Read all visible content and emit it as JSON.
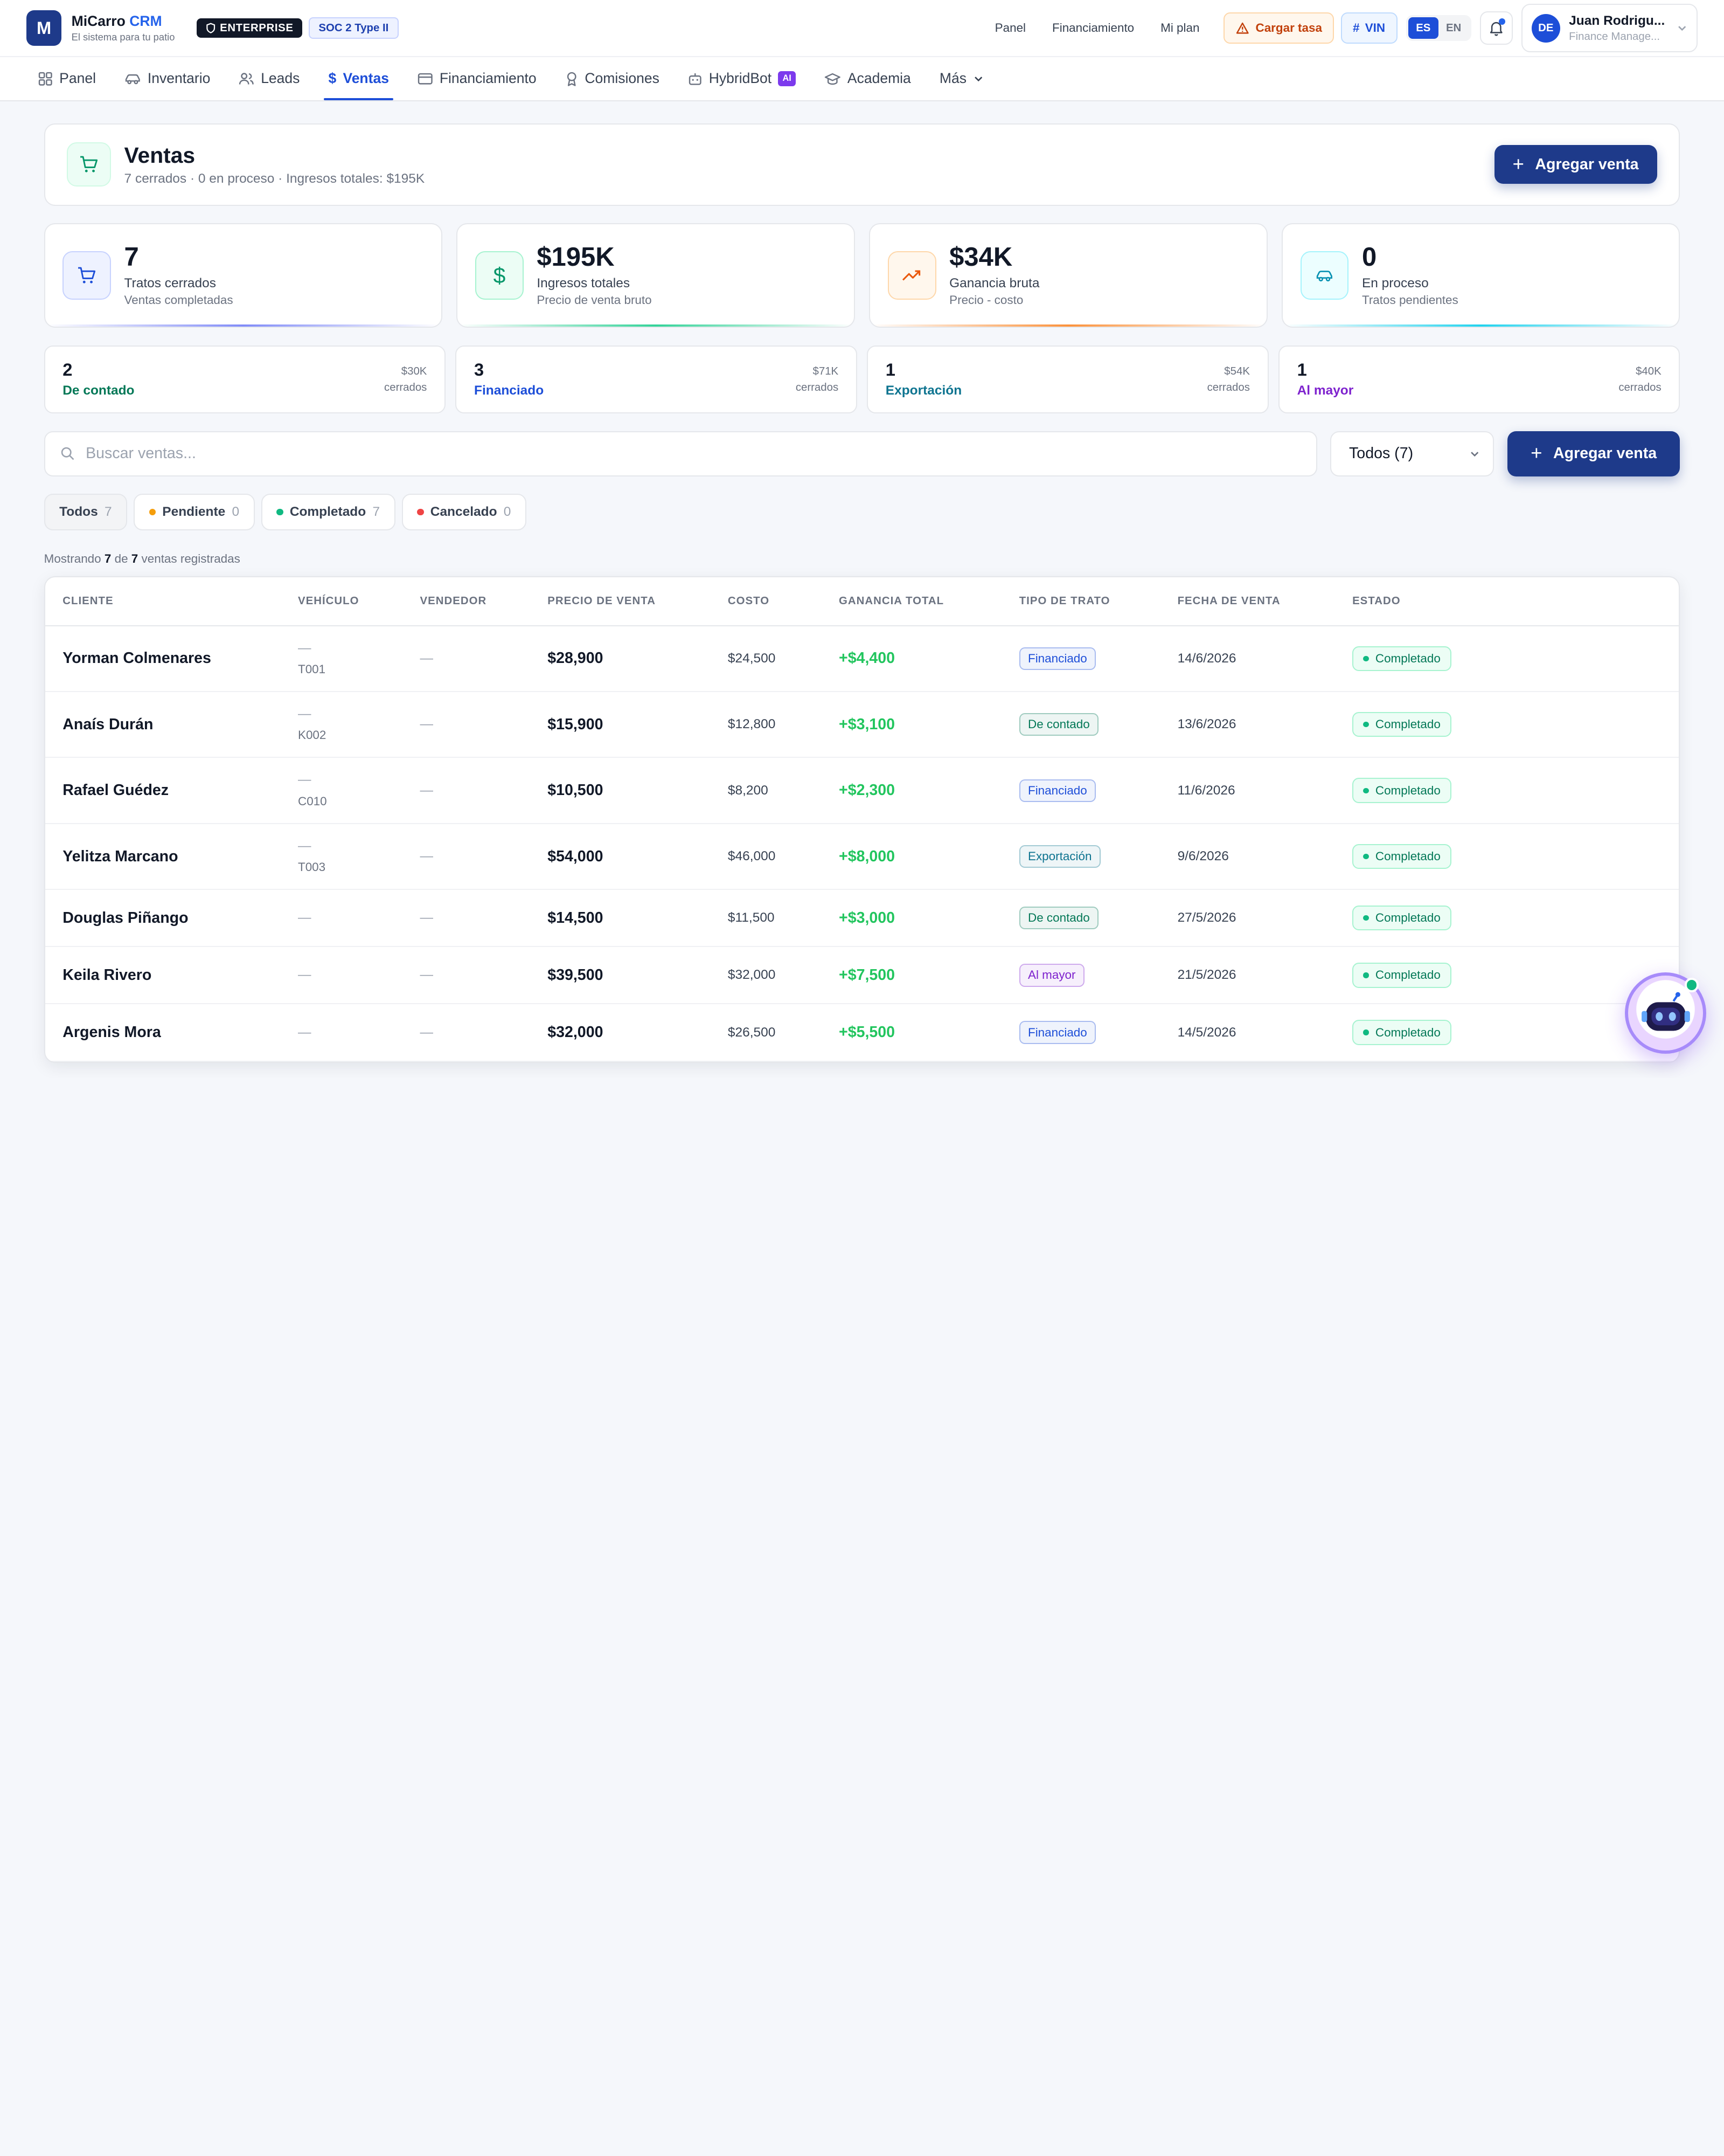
{
  "app": {
    "logo_letter": "M",
    "name": "MiCarro",
    "name_suffix": "CRM",
    "tagline": "El sistema para tu patio",
    "badge_enterprise": "ENTERPRISE",
    "badge_soc": "SOC 2 Type II"
  },
  "top_links": [
    "Panel",
    "Financiamiento",
    "Mi plan"
  ],
  "actions": {
    "cargar_tasa": "Cargar tasa",
    "vin": "VIN",
    "lang_es": "ES",
    "lang_en": "EN",
    "lang_active": "ES"
  },
  "user": {
    "initials": "DE",
    "name": "Juan Rodrigu...",
    "role": "Finance Manage..."
  },
  "nav": [
    {
      "label": "Panel",
      "icon": "grid-icon"
    },
    {
      "label": "Inventario",
      "icon": "car-icon"
    },
    {
      "label": "Leads",
      "icon": "users-icon"
    },
    {
      "label": "Ventas",
      "icon": "dollar-icon",
      "active": true
    },
    {
      "label": "Financiamiento",
      "icon": "credit-card-icon"
    },
    {
      "label": "Comisiones",
      "icon": "award-icon"
    },
    {
      "label": "HybridBot",
      "icon": "bot-icon",
      "badge": "AI"
    },
    {
      "label": "Academia",
      "icon": "graduation-cap-icon"
    },
    {
      "label": "Más",
      "icon": "chevron-down-icon"
    }
  ],
  "header": {
    "title": "Ventas",
    "subtitle": "7 cerrados · 0 en proceso · Ingresos totales: $195K",
    "add_button": "Agregar venta"
  },
  "stats": [
    {
      "value": "7",
      "label": "Tratos cerrados",
      "sub": "Ventas completadas",
      "icon": "cart-icon",
      "color": "#1d4ed8"
    },
    {
      "value": "$195K",
      "label": "Ingresos totales",
      "sub": "Precio de venta bruto",
      "icon": "dollar-icon",
      "color": "#059669"
    },
    {
      "value": "$34K",
      "label": "Ganancia bruta",
      "sub": "Precio - costo",
      "icon": "trending-up-icon",
      "color": "#ea580c"
    },
    {
      "value": "0",
      "label": "En proceso",
      "sub": "Tratos pendientes",
      "icon": "car-icon",
      "color": "#0891b2"
    }
  ],
  "deal_types": [
    {
      "count": "2",
      "label": "De contado",
      "amount": "$30K",
      "amount_sub": "cerrados",
      "color": "#047857"
    },
    {
      "count": "3",
      "label": "Financiado",
      "amount": "$71K",
      "amount_sub": "cerrados",
      "color": "#1d4ed8"
    },
    {
      "count": "1",
      "label": "Exportación",
      "amount": "$54K",
      "amount_sub": "cerrados",
      "color": "#0e7490"
    },
    {
      "count": "1",
      "label": "Al mayor",
      "amount": "$40K",
      "amount_sub": "cerrados",
      "color": "#7e22ce"
    }
  ],
  "search": {
    "placeholder": "Buscar ventas...",
    "filter_value": "Todos (7)",
    "add_button": "Agregar venta"
  },
  "filters": [
    {
      "label": "Todos",
      "count": "7",
      "active": true
    },
    {
      "label": "Pendiente",
      "count": "0",
      "dot": "#f59e0b"
    },
    {
      "label": "Completado",
      "count": "7",
      "dot": "#10b981"
    },
    {
      "label": "Cancelado",
      "count": "0",
      "dot": "#ef4444"
    }
  ],
  "showing": {
    "prefix": "Mostrando",
    "shown": "7",
    "of": "de",
    "total": "7",
    "suffix": "ventas registradas"
  },
  "table": {
    "columns": [
      "CLIENTE",
      "VEHÍCULO",
      "VENDEDOR",
      "PRECIO DE VENTA",
      "COSTO",
      "GANANCIA TOTAL",
      "TIPO DE TRATO",
      "FECHA DE VENTA",
      "ESTADO"
    ],
    "rows": [
      {
        "client": "Yorman Colmenares",
        "vehicle": "—",
        "vehicle_code": "T001",
        "seller": "—",
        "price": "$28,900",
        "cost": "$24,500",
        "profit": "+$4,400",
        "type": "Financiado",
        "date": "14/6/2026",
        "status": "Completado"
      },
      {
        "client": "Anaís Durán",
        "vehicle": "—",
        "vehicle_code": "K002",
        "seller": "—",
        "price": "$15,900",
        "cost": "$12,800",
        "profit": "+$3,100",
        "type": "De contado",
        "date": "13/6/2026",
        "status": "Completado"
      },
      {
        "client": "Rafael Guédez",
        "vehicle": "—",
        "vehicle_code": "C010",
        "seller": "—",
        "price": "$10,500",
        "cost": "$8,200",
        "profit": "+$2,300",
        "type": "Financiado",
        "date": "11/6/2026",
        "status": "Completado"
      },
      {
        "client": "Yelitza Marcano",
        "vehicle": "—",
        "vehicle_code": "T003",
        "seller": "—",
        "price": "$54,000",
        "cost": "$46,000",
        "profit": "+$8,000",
        "type": "Exportación",
        "date": "9/6/2026",
        "status": "Completado"
      },
      {
        "client": "Douglas Piñango",
        "vehicle": "—",
        "vehicle_code": "",
        "seller": "—",
        "price": "$14,500",
        "cost": "$11,500",
        "profit": "+$3,000",
        "type": "De contado",
        "date": "27/5/2026",
        "status": "Completado"
      },
      {
        "client": "Keila Rivero",
        "vehicle": "—",
        "vehicle_code": "",
        "seller": "—",
        "price": "$39,500",
        "cost": "$32,000",
        "profit": "+$7,500",
        "type": "Al mayor",
        "date": "21/5/2026",
        "status": "Completado"
      },
      {
        "client": "Argenis Mora",
        "vehicle": "—",
        "vehicle_code": "",
        "seller": "—",
        "price": "$32,000",
        "cost": "$26,500",
        "profit": "+$5,500",
        "type": "Financiado",
        "date": "14/5/2026",
        "status": "Completado"
      }
    ]
  },
  "type_colors": {
    "Financiado": "#1d4ed8",
    "De contado": "#047857",
    "Exportación": "#0e7490",
    "Al mayor": "#7e22ce"
  }
}
